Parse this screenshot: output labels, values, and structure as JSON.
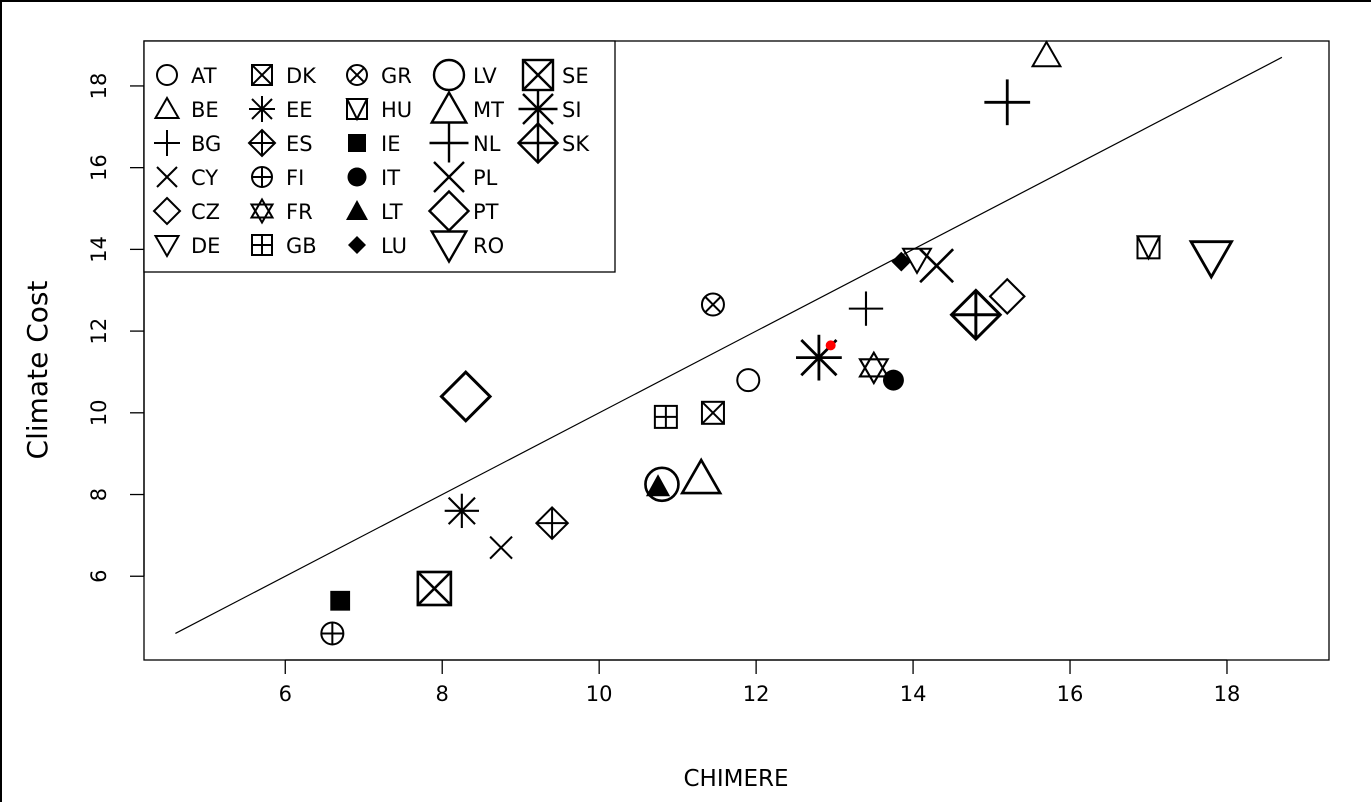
{
  "chart_data": {
    "type": "scatter",
    "title": "",
    "xlabel": "CHIMERE",
    "ylabel": "Climate Cost",
    "xlim": [
      4.2,
      19.3
    ],
    "ylim": [
      3.95,
      19.1
    ],
    "xticks": [
      6,
      8,
      10,
      12,
      14,
      16,
      18
    ],
    "yticks": [
      6,
      8,
      10,
      12,
      14,
      16,
      18
    ],
    "grid": false,
    "legend_position": "top-left",
    "reference_line": {
      "from": [
        4.6,
        4.6
      ],
      "to": [
        18.7,
        18.7
      ]
    },
    "highlight_point": {
      "x": 12.95,
      "y": 11.65,
      "color": "#ff0000"
    },
    "points": [
      {
        "label": "AT",
        "x": 11.9,
        "y": 10.8,
        "shape": "circle",
        "size": 1.0
      },
      {
        "label": "BE",
        "x": 11.3,
        "y": 8.4,
        "shape": "triangle",
        "size": 1.5
      },
      {
        "label": "BG",
        "x": 13.4,
        "y": 12.55,
        "shape": "plus",
        "size": 1.2
      },
      {
        "label": "CY",
        "x": 8.75,
        "y": 6.7,
        "shape": "cross",
        "size": 1.0
      },
      {
        "label": "CZ",
        "x": 15.2,
        "y": 12.85,
        "shape": "diamond",
        "size": 1.2
      },
      {
        "label": "DE",
        "x": 17.8,
        "y": 13.8,
        "shape": "triangle-down",
        "size": 1.6
      },
      {
        "label": "DK",
        "x": 11.45,
        "y": 10.0,
        "shape": "square-x",
        "size": 1.0
      },
      {
        "label": "EE",
        "x": 8.25,
        "y": 7.6,
        "shape": "asterisk",
        "size": 1.2
      },
      {
        "label": "ES",
        "x": 9.4,
        "y": 7.3,
        "shape": "diamond-plus",
        "size": 1.1
      },
      {
        "label": "FI",
        "x": 6.6,
        "y": 4.6,
        "shape": "circle-plus",
        "size": 1.0
      },
      {
        "label": "FR",
        "x": 13.5,
        "y": 11.1,
        "shape": "hexagram",
        "size": 1.2
      },
      {
        "label": "GB",
        "x": 10.85,
        "y": 9.9,
        "shape": "square-plus",
        "size": 1.0
      },
      {
        "label": "GR",
        "x": 11.45,
        "y": 12.65,
        "shape": "circle-x",
        "size": 1.0
      },
      {
        "label": "HU",
        "x": 17.0,
        "y": 14.05,
        "shape": "square-triangle",
        "size": 1.0
      },
      {
        "label": "IE",
        "x": 6.7,
        "y": 5.4,
        "shape": "filled-square",
        "size": 1.0
      },
      {
        "label": "IT",
        "x": 13.75,
        "y": 10.8,
        "shape": "filled-circle",
        "size": 1.0
      },
      {
        "label": "LT",
        "x": 10.75,
        "y": 8.2,
        "shape": "filled-triangle",
        "size": 1.0
      },
      {
        "label": "LU",
        "x": 13.85,
        "y": 13.7,
        "shape": "filled-diamond",
        "size": 1.0
      },
      {
        "label": "LV",
        "x": 10.8,
        "y": 8.25,
        "shape": "circle",
        "size": 1.5
      },
      {
        "label": "MT",
        "x": 15.7,
        "y": 18.75,
        "shape": "triangle",
        "size": 1.1
      },
      {
        "label": "NL",
        "x": 15.2,
        "y": 17.6,
        "shape": "plus",
        "size": 1.6
      },
      {
        "label": "PL",
        "x": 14.3,
        "y": 13.6,
        "shape": "cross",
        "size": 1.5
      },
      {
        "label": "PT",
        "x": 8.3,
        "y": 10.4,
        "shape": "diamond",
        "size": 1.7
      },
      {
        "label": "RO",
        "x": 14.05,
        "y": 13.75,
        "shape": "triangle-down",
        "size": 1.1
      },
      {
        "label": "SE",
        "x": 7.9,
        "y": 5.7,
        "shape": "square-x",
        "size": 1.5
      },
      {
        "label": "SI",
        "x": 12.8,
        "y": 11.35,
        "shape": "asterisk",
        "size": 1.6
      },
      {
        "label": "SK",
        "x": 14.8,
        "y": 12.4,
        "shape": "diamond-plus",
        "size": 1.7
      }
    ],
    "legend": [
      {
        "label": "AT",
        "shape": "circle",
        "size": 1.0
      },
      {
        "label": "BE",
        "shape": "triangle",
        "size": 1.0
      },
      {
        "label": "BG",
        "shape": "plus",
        "size": 1.0
      },
      {
        "label": "CY",
        "shape": "cross",
        "size": 1.0
      },
      {
        "label": "CZ",
        "shape": "diamond",
        "size": 1.0
      },
      {
        "label": "DE",
        "shape": "triangle-down",
        "size": 1.0
      },
      {
        "label": "DK",
        "shape": "square-x",
        "size": 1.0
      },
      {
        "label": "EE",
        "shape": "asterisk",
        "size": 1.0
      },
      {
        "label": "ES",
        "shape": "diamond-plus",
        "size": 1.0
      },
      {
        "label": "FI",
        "shape": "circle-plus",
        "size": 1.0
      },
      {
        "label": "FR",
        "shape": "hexagram",
        "size": 1.0
      },
      {
        "label": "GB",
        "shape": "square-plus",
        "size": 1.0
      },
      {
        "label": "GR",
        "shape": "circle-x",
        "size": 1.0
      },
      {
        "label": "HU",
        "shape": "square-triangle",
        "size": 1.0
      },
      {
        "label": "IE",
        "shape": "filled-square",
        "size": 1.0
      },
      {
        "label": "IT",
        "shape": "filled-circle",
        "size": 1.0
      },
      {
        "label": "LT",
        "shape": "filled-triangle",
        "size": 1.0
      },
      {
        "label": "LU",
        "shape": "filled-diamond",
        "size": 1.0
      },
      {
        "label": "LV",
        "shape": "circle",
        "size": 1.5
      },
      {
        "label": "MT",
        "shape": "triangle",
        "size": 1.5
      },
      {
        "label": "NL",
        "shape": "plus",
        "size": 1.5
      },
      {
        "label": "PL",
        "shape": "cross",
        "size": 1.5
      },
      {
        "label": "PT",
        "shape": "diamond",
        "size": 1.5
      },
      {
        "label": "RO",
        "shape": "triangle-down",
        "size": 1.5
      },
      {
        "label": "SE",
        "shape": "square-x",
        "size": 1.5
      },
      {
        "label": "SI",
        "shape": "asterisk",
        "size": 1.5
      },
      {
        "label": "SK",
        "shape": "diamond-plus",
        "size": 1.5
      }
    ]
  }
}
